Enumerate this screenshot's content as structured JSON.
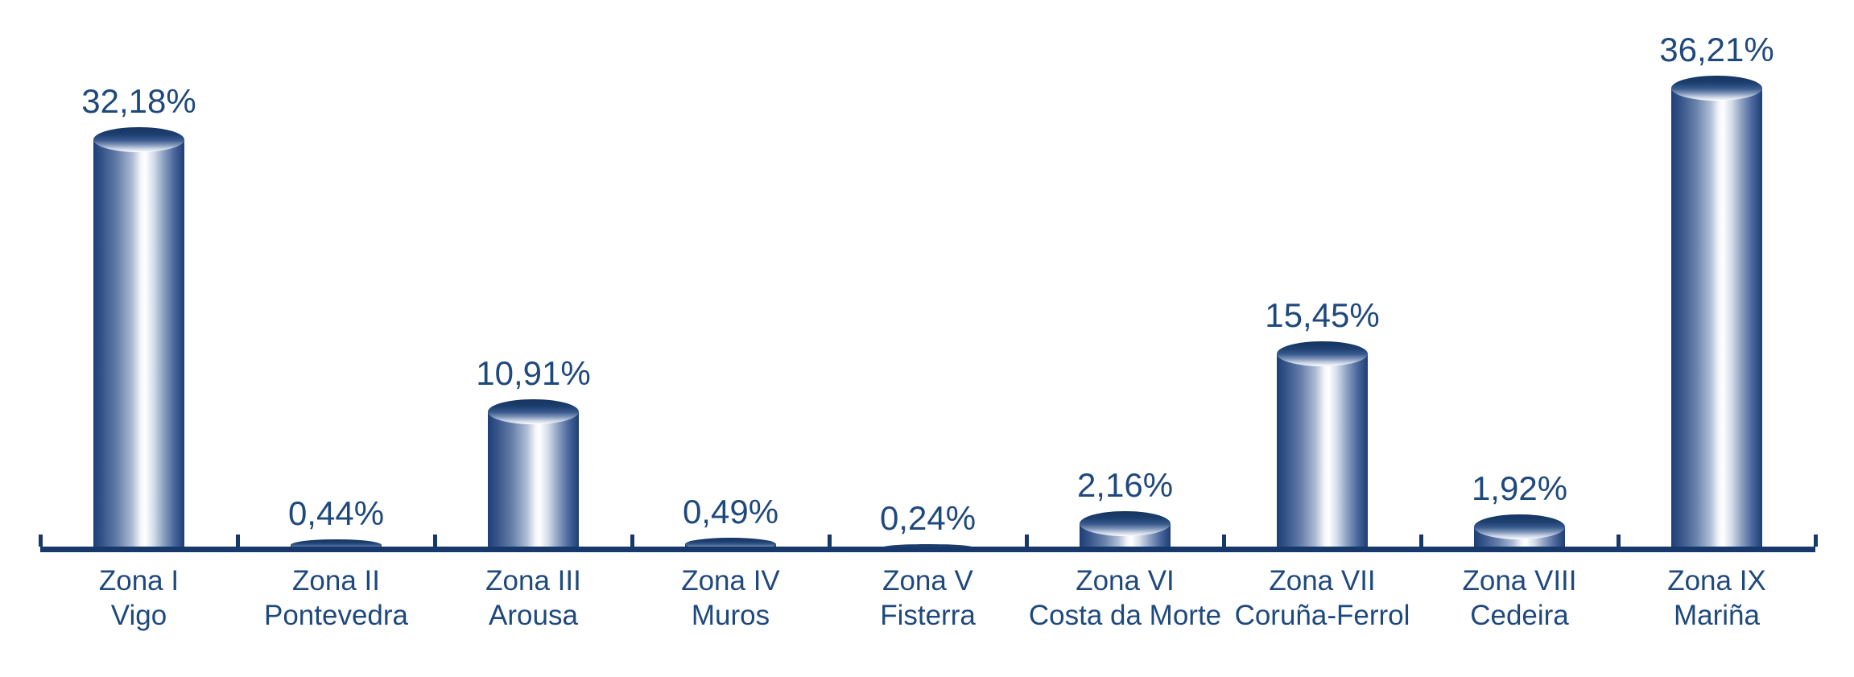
{
  "chart_data": {
    "type": "bar",
    "style": "3d-vertical-cylinders",
    "title": "",
    "xlabel": "",
    "ylabel": "",
    "ylim": [
      0,
      40
    ],
    "grid": false,
    "legend": false,
    "decimal_separator": ",",
    "unit": "%",
    "categories": [
      [
        "Zona I",
        "Vigo"
      ],
      [
        "Zona II",
        "Pontevedra"
      ],
      [
        "Zona III",
        "Arousa"
      ],
      [
        "Zona IV",
        "Muros"
      ],
      [
        "Zona V",
        "Fisterra"
      ],
      [
        "Zona VI",
        "Costa da Morte"
      ],
      [
        "Zona VII",
        "Coruña-Ferrol"
      ],
      [
        "Zona VIII",
        "Cedeira"
      ],
      [
        "Zona IX",
        "Mariña"
      ]
    ],
    "values": [
      32.18,
      0.44,
      10.91,
      0.49,
      0.24,
      2.16,
      15.45,
      1.92,
      36.21
    ],
    "value_labels": [
      "32,18%",
      "0,44%",
      "10,91%",
      "0,49%",
      "0,24%",
      "2,16%",
      "15,45%",
      "1,92%",
      "36,21%"
    ]
  },
  "colors": {
    "label_text": "#1F497D",
    "axis": "#17386B",
    "bar_dark": "#1E3F74",
    "bar_highlight": "#FFFFFF"
  }
}
